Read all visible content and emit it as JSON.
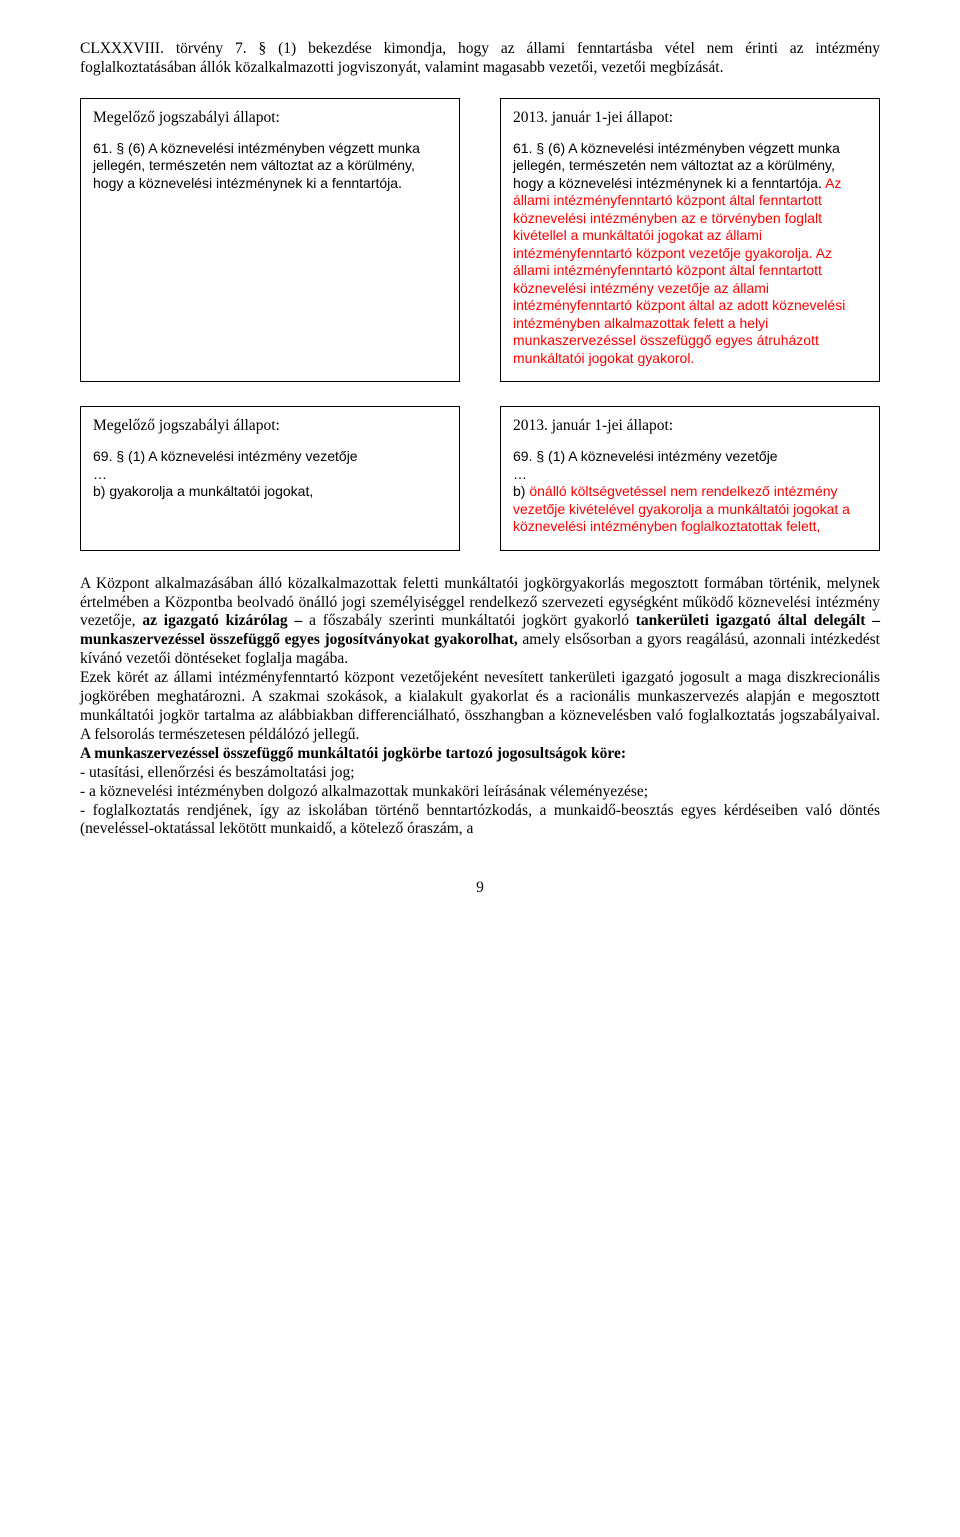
{
  "intro": "CLXXXVIII. törvény 7. § (1) bekezdése kimondja, hogy az állami fenntartásba vétel nem érinti az intézmény foglalkoztatásában állók közalkalmazotti jogviszonyát, valamint magasabb vezetői, vezetői megbízását.",
  "row1": {
    "left": {
      "head": "Megelőző jogszabályi állapot:",
      "body": "61. § (6) A köznevelési intézményben végzett munka jellegén, természetén nem változtat az a körülmény, hogy a köznevelési intézménynek ki a fenntartója."
    },
    "right": {
      "head": "2013. január 1-jei állapot:",
      "body_black": "61. § (6) A köznevelési intézményben végzett munka jellegén, természetén nem változtat az a körülmény, hogy a köznevelési intézménynek ki a fenntartója. ",
      "body_red": "Az állami intézményfenntartó központ által fenntartott köznevelési intézményben az e törvényben foglalt kivétellel a munkáltatói jogokat az állami intézményfenntartó központ vezetője gyakorolja. Az állami intézményfenntartó központ által fenntartott köznevelési intézmény vezetője az állami intézményfenntartó központ által az adott köznevelési intézményben alkalmazottak felett a helyi munkaszervezéssel összefüggő egyes átruházott munkáltatói jogokat gyakorol."
    }
  },
  "row2": {
    "left": {
      "head": "Megelőző jogszabályi állapot:",
      "body": "69. § (1) A köznevelési intézmény vezetője\n…\nb) gyakorolja a munkáltatói jogokat,"
    },
    "right": {
      "head": "2013. január 1-jei állapot:",
      "body_pre": "69. § (1) A köznevelési intézmény vezetője\n…\nb) ",
      "body_red": "önálló költségvetéssel nem rendelkező intézmény vezetője kivételével gyakorolja a munkáltatói jogokat a köznevelési intézményben foglalkoztatottak felett,"
    }
  },
  "para1": {
    "pre": "A Központ alkalmazásában álló közalkalmazottak feletti munkáltatói jogkörgyakorlás megosztott formában történik, melynek értelmében a Központba beolvadó önálló jogi személyiséggel rendelkező szervezeti egységként működő köznevelési intézmény vezetője, ",
    "b1": "az igazgató kizárólag – ",
    "mid1": "a főszabály szerinti munkáltatói jogkört gyakorló ",
    "b2": "tankerületi igazgató által delegált – munkaszervezéssel összefüggő egyes jogosítványokat gyakorolhat,",
    "post": " amely elsősorban a gyors reagálású, azonnali intézkedést kívánó vezetői döntéseket foglalja magába."
  },
  "para2": "Ezek körét az állami intézményfenntartó központ vezetőjeként nevesített tankerületi igazgató jogosult a maga diszkrecionális jogkörében meghatározni. A szakmai szokások, a kialakult gyakorlat és a racionális munkaszervezés alapján e megosztott munkáltatói jogkör tartalma az alábbiakban differenciálható, összhangban a köznevelésben való foglalkoztatás jogszabályaival. A felsorolás természetesen példálózó jellegű.",
  "subhead": "A munkaszervezéssel összefüggő munkáltatói jogkörbe tartozó jogosultságok köre:",
  "bullets": [
    "- utasítási, ellenőrzési és beszámoltatási jog;",
    "- a köznevelési intézményben dolgozó alkalmazottak munkaköri leírásának véleményezése;",
    "- foglalkoztatás rendjének, így az iskolában történő benntartózkodás, a munkaidő-beosztás egyes kérdéseiben való döntés (neveléssel-oktatással lekötött munkaidő, a kötelező óraszám, a"
  ],
  "pageNumber": "9"
}
